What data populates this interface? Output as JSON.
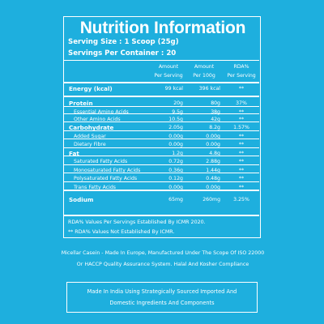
{
  "title": "Nutrition Information",
  "serving_size": "Serving Size : 1 Scoop (25g)",
  "servings_per_container": "Servings Per Container : 20",
  "columns": [
    {
      "line1": "Amount",
      "line2": "Per Serving"
    },
    {
      "line1": "Amount",
      "line2": "Per 100g"
    },
    {
      "line1": "RDA%",
      "line2": "Per Serving"
    }
  ],
  "rows": [
    {
      "label": "Energy (kcal)",
      "per_serving": "99 kcal",
      "per_100g": "396 kcal",
      "rda": "**"
    },
    {
      "label": "Protein",
      "per_serving": "20g",
      "per_100g": "80g",
      "rda": "37%"
    },
    {
      "label": "Essential Amino Acids",
      "per_serving": "9.5g",
      "per_100g": "38g",
      "rda": "**"
    },
    {
      "label": "Other Amino Acids",
      "per_serving": "10.5g",
      "per_100g": "42g",
      "rda": "**"
    },
    {
      "label": "Carbohydrate",
      "per_serving": "2.05g",
      "per_100g": "8.2g",
      "rda": "1.57%"
    },
    {
      "label": "Added Sugar",
      "per_serving": "0.00g",
      "per_100g": "0.00g",
      "rda": "**"
    },
    {
      "label": "Dietary Fibre",
      "per_serving": "0.00g",
      "per_100g": "0.00g",
      "rda": "**"
    },
    {
      "label": "Fat",
      "per_serving": "1.2g",
      "per_100g": "4.8g",
      "rda": "**"
    },
    {
      "label": "Saturated Fatty Acids",
      "per_serving": "0.72g",
      "per_100g": "2.88g",
      "rda": "**"
    },
    {
      "label": "Monosaturated Fatty Acids",
      "per_serving": "0.36g",
      "per_100g": "1.44g",
      "rda": "**"
    },
    {
      "label": "Polysaturated Fatty Acids",
      "per_serving": "0.12g",
      "per_100g": "0.48g",
      "rda": "**"
    },
    {
      "label": "Trans Fatty Acids",
      "per_serving": "0.00g",
      "per_100g": "0.00g",
      "rda": "**"
    },
    {
      "label": "Sodium",
      "per_serving": "65mg",
      "per_100g": "260mg",
      "rda": "3.25%"
    }
  ],
  "notes": [
    "RDA% Values Per Servings Established By ICMR 2020.",
    "** RDA% Values Not Established By ICMR."
  ],
  "footer": {
    "line1": "Micellar Casein - Made In Europe, Manufactured Under The Scope Of ISO 22000",
    "line2": "Or HACCP Quality Assurance System. Halal And Kosher Compliance"
  },
  "india_box": {
    "line1": "Made In India Using Strategically Sourced Imported And",
    "line2": "Domestic Ingredients And Components"
  },
  "colors": {
    "background": "#1eafde",
    "text": "#ffffff"
  }
}
